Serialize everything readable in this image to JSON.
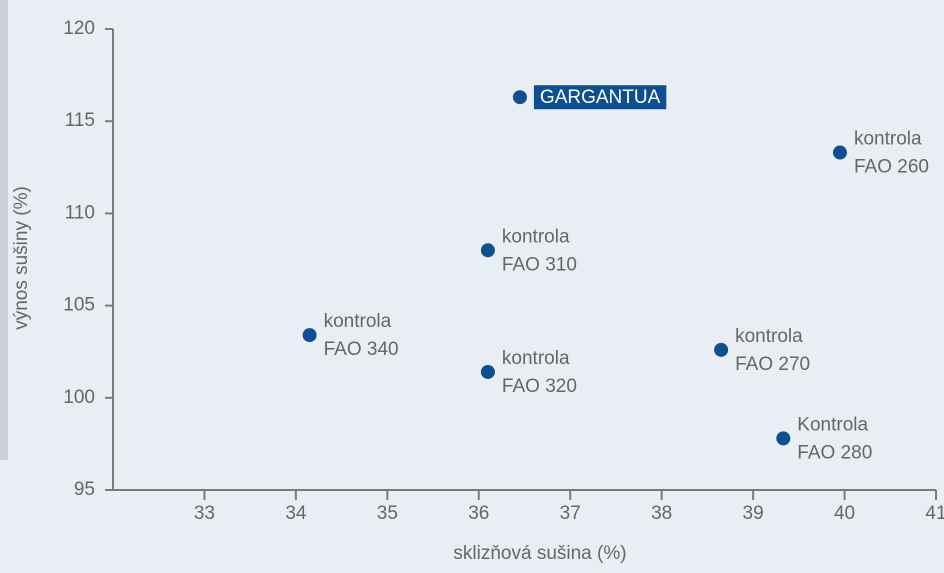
{
  "chart_data": {
    "type": "scatter",
    "x_label": "sklizňová sušina (%)",
    "y_label": "výnos sušiny (%)",
    "x": [
      36.45,
      39.95,
      36.1,
      34.15,
      36.1,
      38.65,
      39.33
    ],
    "values": [
      116.3,
      113.3,
      108.0,
      103.4,
      101.4,
      102.6,
      97.8
    ],
    "point_labels": [
      [
        "GARGANTUA"
      ],
      [
        "kontrola",
        "FAO 260"
      ],
      [
        "kontrola",
        "FAO 310"
      ],
      [
        "kontrola",
        "FAO 340"
      ],
      [
        "kontrola",
        "FAO 320"
      ],
      [
        "kontrola",
        "FAO 270"
      ],
      [
        "Kontrola",
        "FAO 280"
      ]
    ],
    "highlight_index": 0,
    "color": "#0d4f91",
    "xlim": [
      32,
      41
    ],
    "xticks": [
      33,
      34,
      35,
      36,
      37,
      38,
      39,
      40,
      41
    ],
    "ylim": [
      95,
      120
    ],
    "yticks": [
      95,
      100,
      105,
      110,
      115,
      120
    ]
  }
}
